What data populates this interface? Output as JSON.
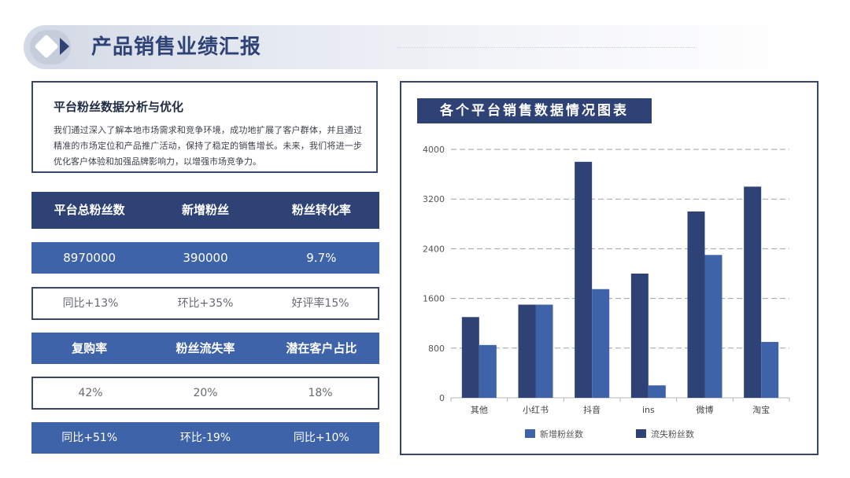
{
  "header": {
    "title": "产品销售业绩汇报"
  },
  "intro": {
    "title": "平台粉丝数据分析与优化",
    "text": "我们通过深入了解本地市场需求和竞争环境，成功地扩展了客户群体，并且通过精准的市场定位和产品推广活动，保持了稳定的销售增长。未来，我们将进一步优化客户体验和加强品牌影响力，以增强市场竞争力。"
  },
  "stats": {
    "row1_headers": [
      "平台总粉丝数",
      "新增粉丝",
      "粉丝转化率"
    ],
    "row1_values": [
      "8970000",
      "390000",
      "9.7%"
    ],
    "row1_changes": [
      "同比+13%",
      "环比+35%",
      "好评率15%"
    ],
    "row2_headers": [
      "复购率",
      "粉丝流失率",
      "潜在客户占比"
    ],
    "row2_values": [
      "42%",
      "20%",
      "18%"
    ],
    "row2_changes": [
      "同比+51%",
      "环比-19%",
      "同比+10%"
    ]
  },
  "chart_data": {
    "type": "bar",
    "title": "各个平台销售数据情况图表",
    "categories": [
      "其他",
      "小红书",
      "抖音",
      "ins",
      "微博",
      "淘宝"
    ],
    "series": [
      {
        "name": "流失粉丝数",
        "color": "#2e4275",
        "values": [
          1300,
          1500,
          3800,
          2000,
          3000,
          3400
        ]
      },
      {
        "name": "新增粉丝数",
        "color": "#3e63a9",
        "values": [
          850,
          1500,
          1750,
          200,
          2300,
          900
        ]
      }
    ],
    "ylim": [
      0,
      4000
    ],
    "yticks": [
      "0",
      "800",
      "1600",
      "2400",
      "3200",
      "4000"
    ],
    "grid": true,
    "legend": {
      "placement": "bottom",
      "order": [
        1,
        0
      ]
    }
  }
}
